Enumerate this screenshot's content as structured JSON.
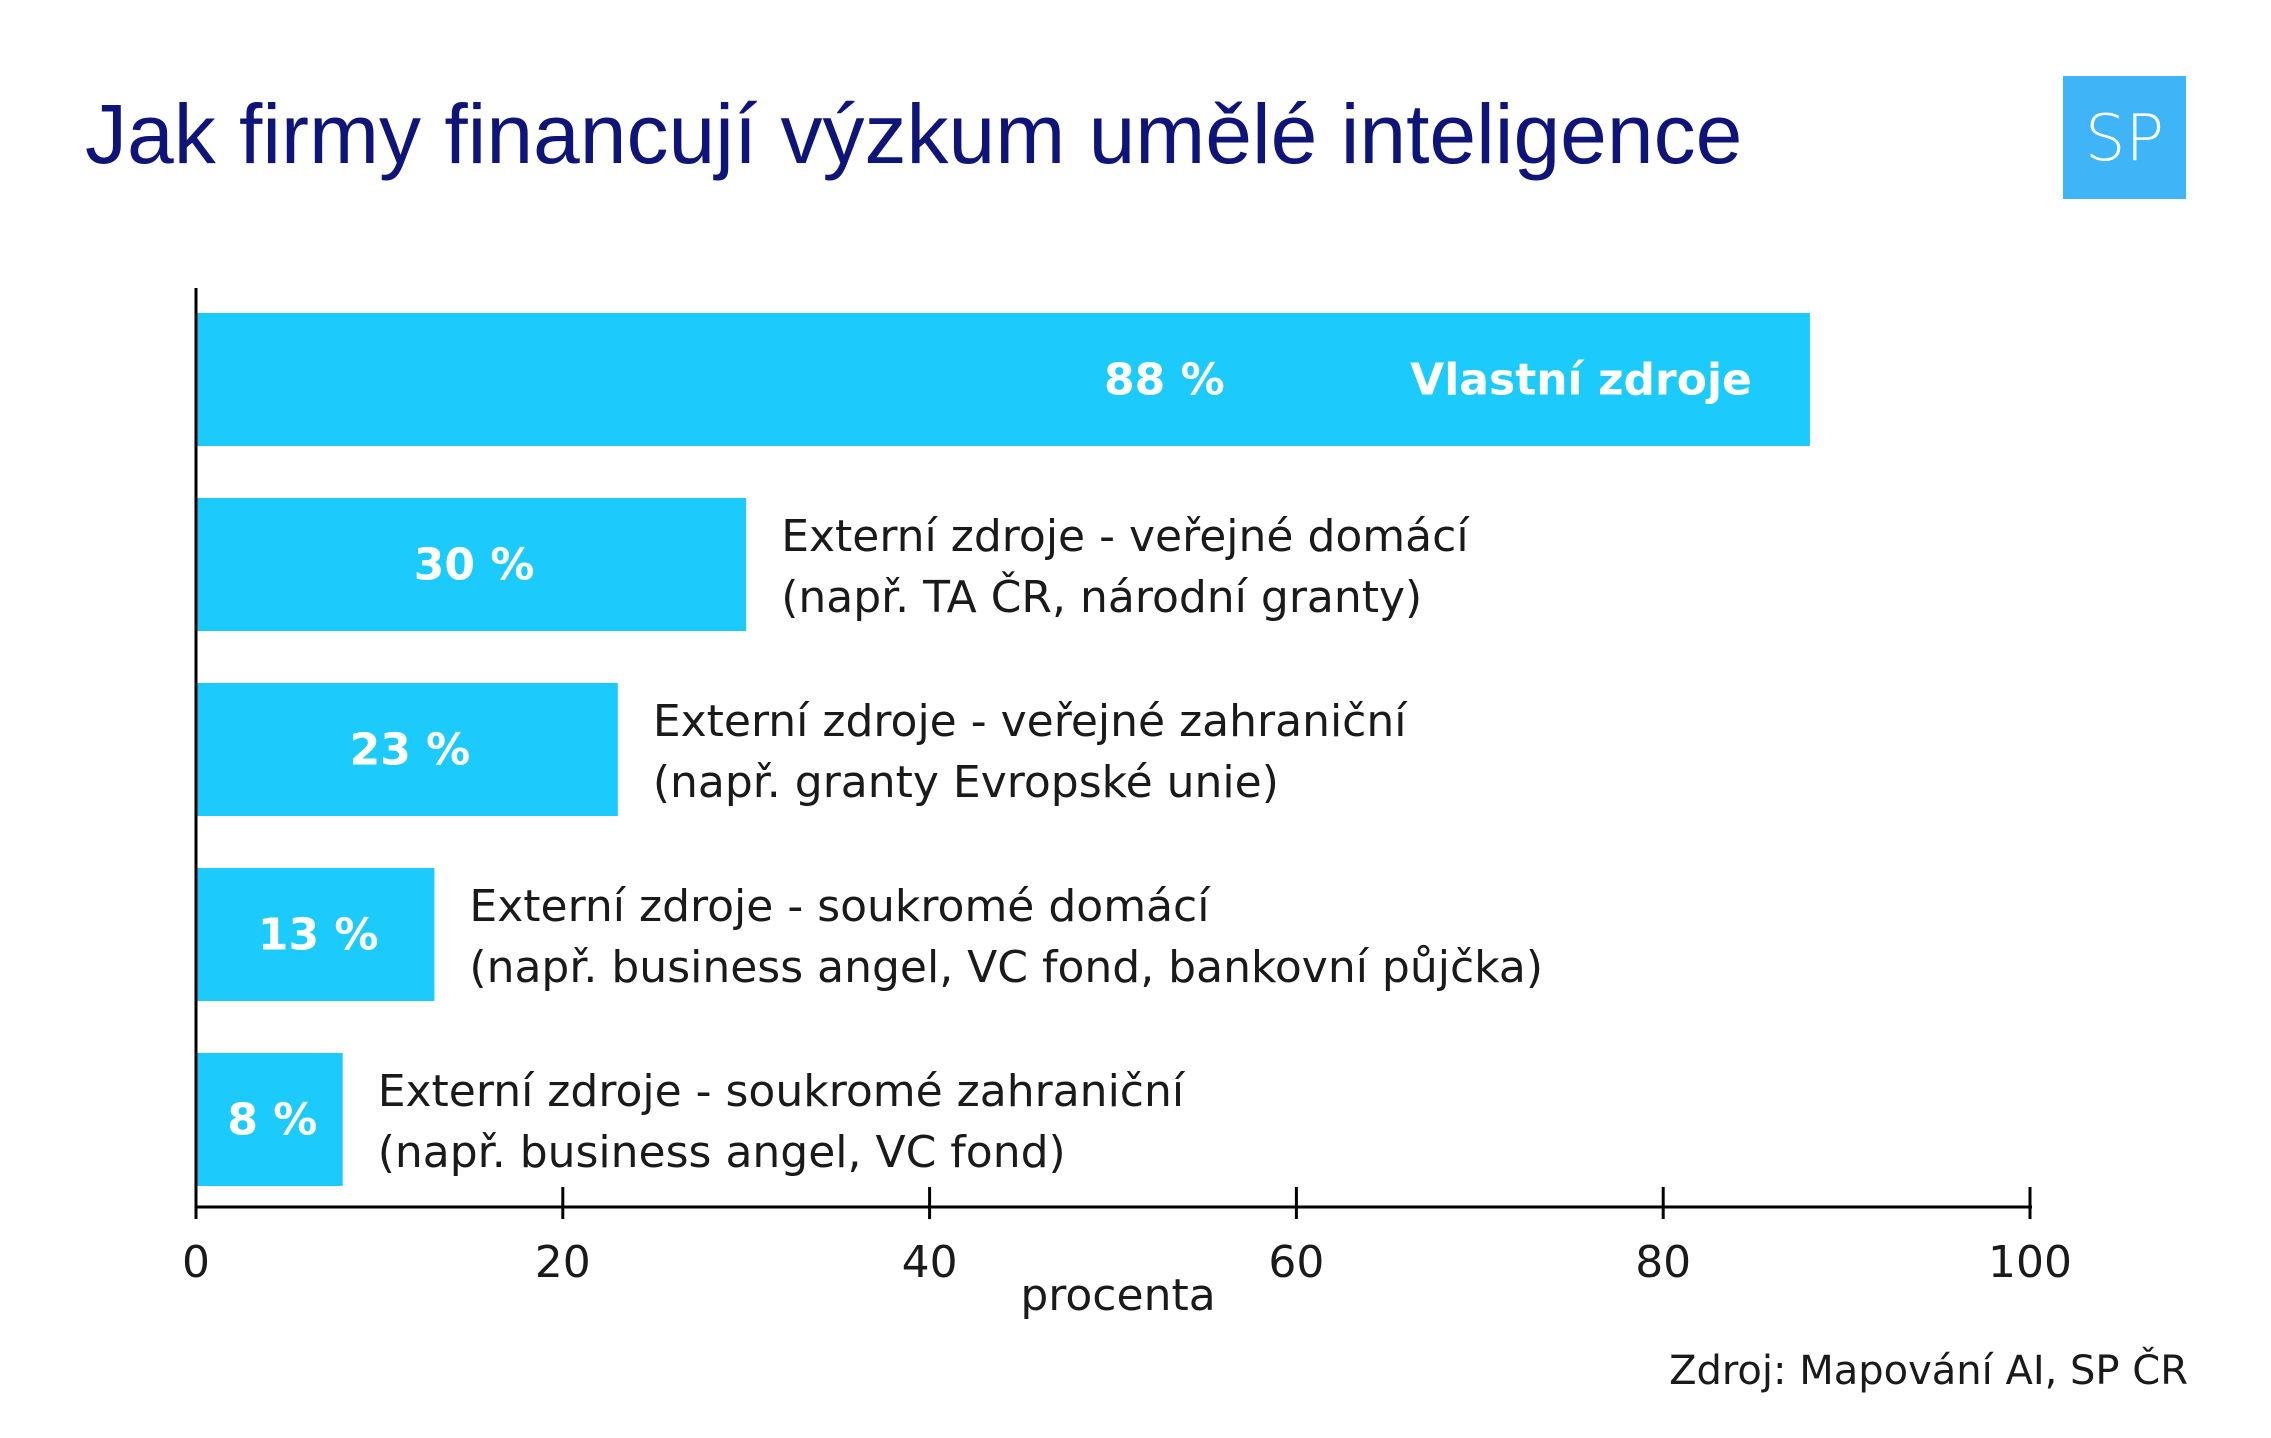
{
  "title": "Jak firmy financují výzkum umělé inteligence",
  "logo": {
    "text": "SP",
    "color": "#3fb5f7"
  },
  "source": "Zdroj: Mapování AI, SP ČR",
  "colors": {
    "title": "#0f1478",
    "bar": "#1ccbfb",
    "text": "#1a1a1a",
    "axis": "#000000"
  },
  "chart_data": {
    "type": "bar",
    "orientation": "horizontal",
    "xlabel": "procenta",
    "xlim": [
      0,
      100
    ],
    "xticks": [
      0,
      20,
      40,
      60,
      80,
      100
    ],
    "grid": false,
    "bars": [
      {
        "value": 88,
        "value_label": "88 %",
        "label_lines": [
          "Vlastní zdroje"
        ],
        "label_inside": true
      },
      {
        "value": 30,
        "value_label": "30 %",
        "label_lines": [
          "Externí zdroje - veřejné domácí",
          "(např. TA ČR, národní granty)"
        ],
        "label_inside": false
      },
      {
        "value": 23,
        "value_label": "23 %",
        "label_lines": [
          "Externí zdroje - veřejné zahraniční",
          "(např. granty Evropské unie)"
        ],
        "label_inside": false
      },
      {
        "value": 13,
        "value_label": "13 %",
        "label_lines": [
          "Externí zdroje - soukromé domácí",
          "(např. business angel, VC fond, bankovní půjčka)"
        ],
        "label_inside": false
      },
      {
        "value": 8,
        "value_label": "8 %",
        "label_lines": [
          "Externí zdroje - soukromé zahraniční",
          "(např. business angel, VC fond)"
        ],
        "label_inside": false
      }
    ]
  }
}
